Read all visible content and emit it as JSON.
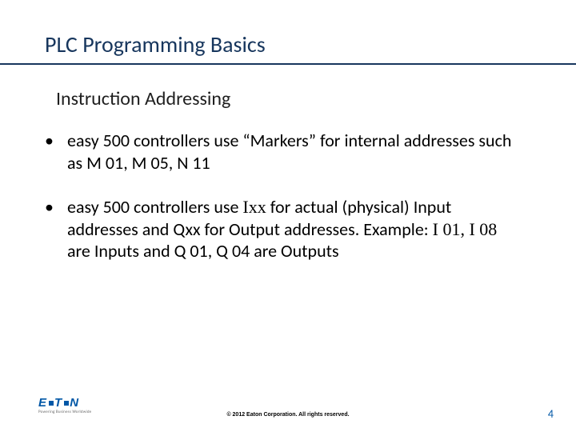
{
  "colors": {
    "title": "#17365d",
    "rule": "#17365d",
    "body": "#000000",
    "logo": "#0057a6",
    "tagline": "#6b6b6b",
    "pagenum": "#0057a6",
    "background": "#ffffff"
  },
  "typography": {
    "title_fontsize": 28,
    "subtitle_fontsize": 24,
    "bullet_fontsize": 22,
    "copyright_fontsize": 7,
    "pagenum_fontsize": 14,
    "logo_fontsize": 15,
    "tagline_fontsize": 5,
    "body_family": "Calibri",
    "special_family": "Times New Roman"
  },
  "title": "PLC Programming Basics",
  "subtitle": "Instruction Addressing",
  "bullets": [
    {
      "pre": "easy 500 controllers use “Markers” for internal addresses such as M 01, M 05, N 11",
      "sp1": "",
      "mid": "",
      "sp2": "",
      "post": ""
    },
    {
      "pre": "easy 500 controllers use ",
      "sp1": "Ixx",
      "mid": " for actual (physical) Input addresses and Qxx for Output addresses. Example: ",
      "sp2": "I 01, I 08",
      "post": " are Inputs and Q 01, Q 04 are Outputs"
    }
  ],
  "footer": {
    "logo_parts": {
      "a": "E",
      "b": "T",
      "c": "N"
    },
    "tagline": "Powering Business Worldwide",
    "copyright": "© 2012 Eaton Corporation. All rights reserved.",
    "page_number": "4"
  }
}
